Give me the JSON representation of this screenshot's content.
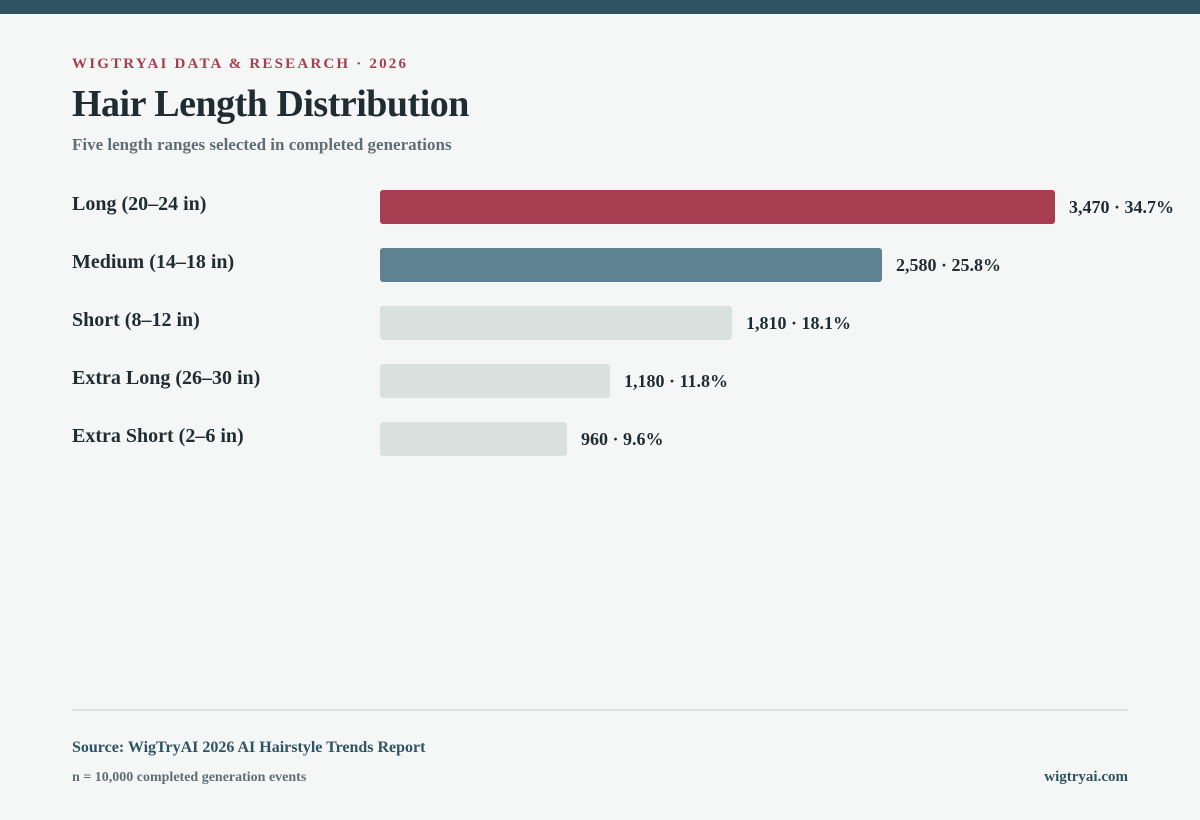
{
  "header": {
    "eyebrow": "WIGTRYAI DATA & RESEARCH · 2026",
    "title": "Hair Length Distribution",
    "subtitle": "Five length ranges selected in completed generations"
  },
  "chart_data": {
    "type": "bar",
    "orientation": "horizontal",
    "title": "Hair Length Distribution",
    "subtitle": "Five length ranges selected in completed generations",
    "categories": [
      "Long (20–24 in)",
      "Medium (14–18 in)",
      "Short (8–12 in)",
      "Extra Long (26–30 in)",
      "Extra Short (2–6 in)"
    ],
    "values": [
      3470,
      2580,
      1810,
      1180,
      960
    ],
    "percents": [
      34.7,
      25.8,
      18.1,
      11.8,
      9.6
    ],
    "value_labels": [
      "3,470 · 34.7%",
      "2,580 · 25.8%",
      "1,810 · 18.1%",
      "1,180 · 11.8%",
      "960 · 9.6%"
    ],
    "colors": [
      "#a63d50",
      "#5e8292",
      "#d9e1df",
      "#d9e1df",
      "#d9e1df"
    ],
    "xlim": [
      0,
      3470
    ],
    "grid": false,
    "legend": "none"
  },
  "footer": {
    "source": "Source: WigTryAI 2026 AI Hairstyle Trends Report",
    "note": "n = 10,000 completed generation events",
    "site": "wigtryai.com"
  }
}
